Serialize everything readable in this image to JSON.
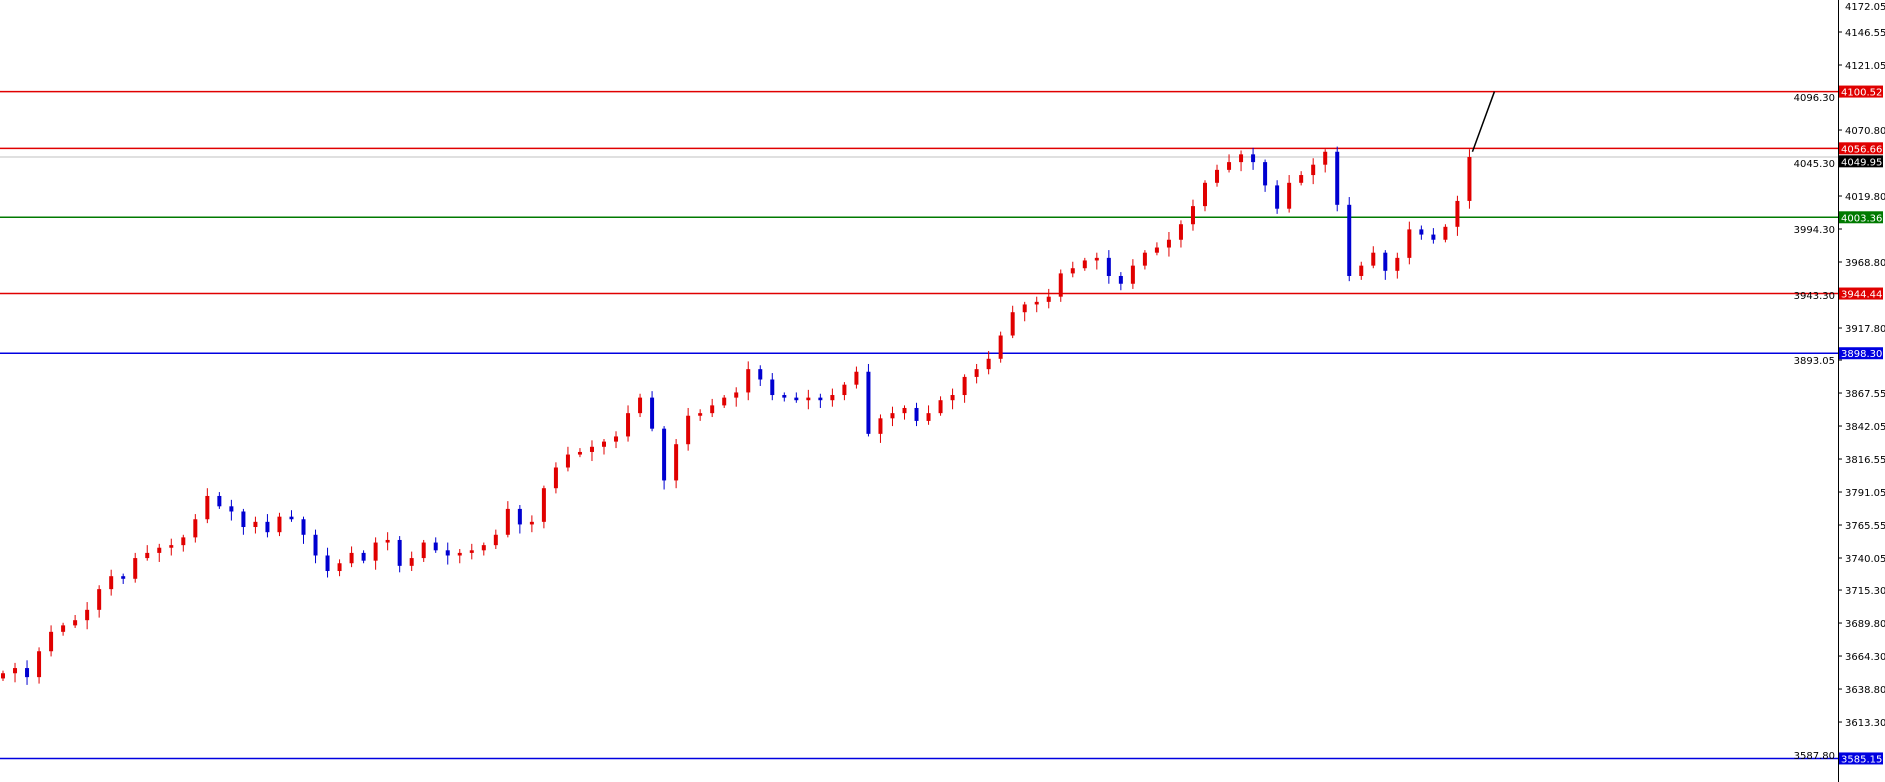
{
  "chart_data": {
    "type": "candlestick",
    "title": "",
    "xlabel": "",
    "ylabel": "",
    "ylim": [
      3560,
      4172.05
    ],
    "grid": false,
    "y_ticks": [
      "4172.05",
      "4146.55",
      "4121.05",
      "4096.30",
      "4070.80",
      "4045.30",
      "4019.80",
      "3994.30",
      "3968.80",
      "3943.30",
      "3917.80",
      "3893.05",
      "3867.55",
      "3842.05",
      "3816.55",
      "3791.05",
      "3765.55",
      "3740.05",
      "3715.30",
      "3689.80",
      "3664.30",
      "3638.80",
      "3613.30",
      "3587.80"
    ],
    "up_color": "#e00000",
    "down_color": "#0000d0",
    "closes": [
      3651,
      3655,
      3648,
      3668,
      3683,
      3688,
      3692,
      3700,
      3716,
      3726,
      3724,
      3740,
      3744,
      3748,
      3750,
      3756,
      3770,
      3788,
      3780,
      3776,
      3764,
      3768,
      3760,
      3772,
      3770,
      3758,
      3742,
      3730,
      3736,
      3744,
      3738,
      3752,
      3754,
      3734,
      3740,
      3752,
      3746,
      3742,
      3744,
      3746,
      3750,
      3758,
      3778,
      3766,
      3768,
      3794,
      3810,
      3820,
      3822,
      3826,
      3830,
      3834,
      3852,
      3864,
      3840,
      3800,
      3828,
      3850,
      3852,
      3858,
      3864,
      3868,
      3886,
      3878,
      3866,
      3864,
      3862,
      3864,
      3862,
      3866,
      3874,
      3884,
      3836,
      3848,
      3852,
      3856,
      3846,
      3852,
      3862,
      3866,
      3880,
      3886,
      3894,
      3912,
      3930,
      3936,
      3938,
      3942,
      3960,
      3964,
      3970,
      3972,
      3958,
      3952,
      3966,
      3976,
      3980,
      3986,
      3998,
      4012,
      4030,
      4040,
      4046,
      4052,
      4046,
      4028,
      4010,
      4030,
      4036,
      4044,
      4054,
      4013,
      3958,
      3966,
      3976,
      3962,
      3972,
      3994,
      3990,
      3986,
      3996,
      4016,
      4049.95
    ],
    "levels": [
      {
        "value": 4100.52,
        "label": "4100.52",
        "color": "#e00000"
      },
      {
        "value": 4056.66,
        "label": "4056.66",
        "color": "#e00000"
      },
      {
        "value": 4003.36,
        "label": "4003.36",
        "color": "#007a00"
      },
      {
        "value": 3944.44,
        "label": "3944.44",
        "color": "#e00000"
      },
      {
        "value": 3898.3,
        "label": "3898.30",
        "color": "#0000e0"
      },
      {
        "value": 3585.15,
        "label": "3585.15",
        "color": "#0000e0"
      }
    ],
    "current_price": {
      "value": 4049.95,
      "label": "4049.95",
      "color": "#000000",
      "line_color": "#c0c0c0"
    },
    "projection_arrow": {
      "from": 4054,
      "to": 4100.52,
      "color": "#000000"
    }
  }
}
